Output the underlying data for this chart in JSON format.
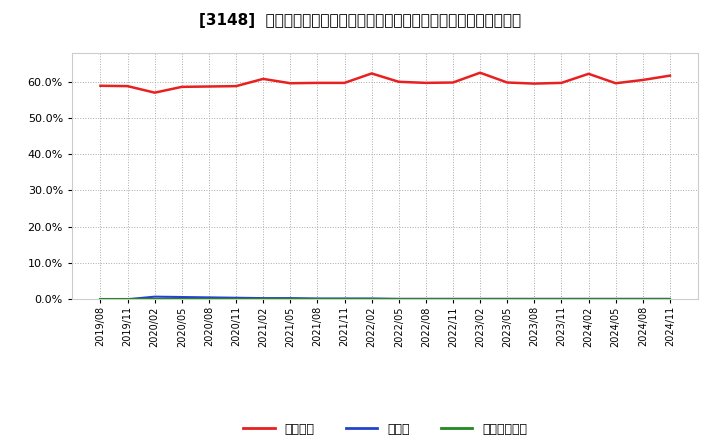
{
  "title": "[3148]  自己資本、のれん、繰延税金資産の総資産に対する比率の推移",
  "x_labels": [
    "2019/08",
    "2019/11",
    "2020/02",
    "2020/05",
    "2020/08",
    "2020/11",
    "2021/02",
    "2021/05",
    "2021/08",
    "2021/11",
    "2022/02",
    "2022/05",
    "2022/08",
    "2022/11",
    "2023/02",
    "2023/05",
    "2023/08",
    "2023/11",
    "2024/02",
    "2024/05",
    "2024/08",
    "2024/11"
  ],
  "equity_ratio": [
    0.589,
    0.588,
    0.57,
    0.586,
    0.587,
    0.588,
    0.608,
    0.596,
    0.597,
    0.597,
    0.623,
    0.6,
    0.597,
    0.598,
    0.625,
    0.598,
    0.595,
    0.597,
    0.622,
    0.596,
    0.605,
    0.617
  ],
  "noren_ratio": [
    0.0,
    0.0,
    0.007,
    0.006,
    0.005,
    0.004,
    0.003,
    0.003,
    0.002,
    0.002,
    0.002,
    0.001,
    0.001,
    0.001,
    0.001,
    0.001,
    0.001,
    0.001,
    0.001,
    0.001,
    0.001,
    0.001
  ],
  "dtax_ratio": [
    0.0,
    0.0,
    0.0,
    0.0,
    0.0,
    0.0,
    0.0,
    0.0,
    0.0,
    0.0,
    0.0,
    0.0,
    0.0,
    0.0,
    0.0,
    0.0,
    0.0,
    0.0,
    0.0,
    0.0,
    0.0,
    0.0
  ],
  "equity_color": "#e82020",
  "noren_color": "#2244cc",
  "dtax_color": "#228822",
  "bg_color": "#ffffff",
  "plot_bg_color": "#ffffff",
  "grid_color": "#aaaaaa",
  "title_fontsize": 11,
  "legend_labels": [
    "自己資本",
    "のれん",
    "繰延税金資産"
  ],
  "ylim": [
    0.0,
    0.68
  ],
  "yticks": [
    0.0,
    0.1,
    0.2,
    0.3,
    0.4,
    0.5,
    0.6
  ]
}
